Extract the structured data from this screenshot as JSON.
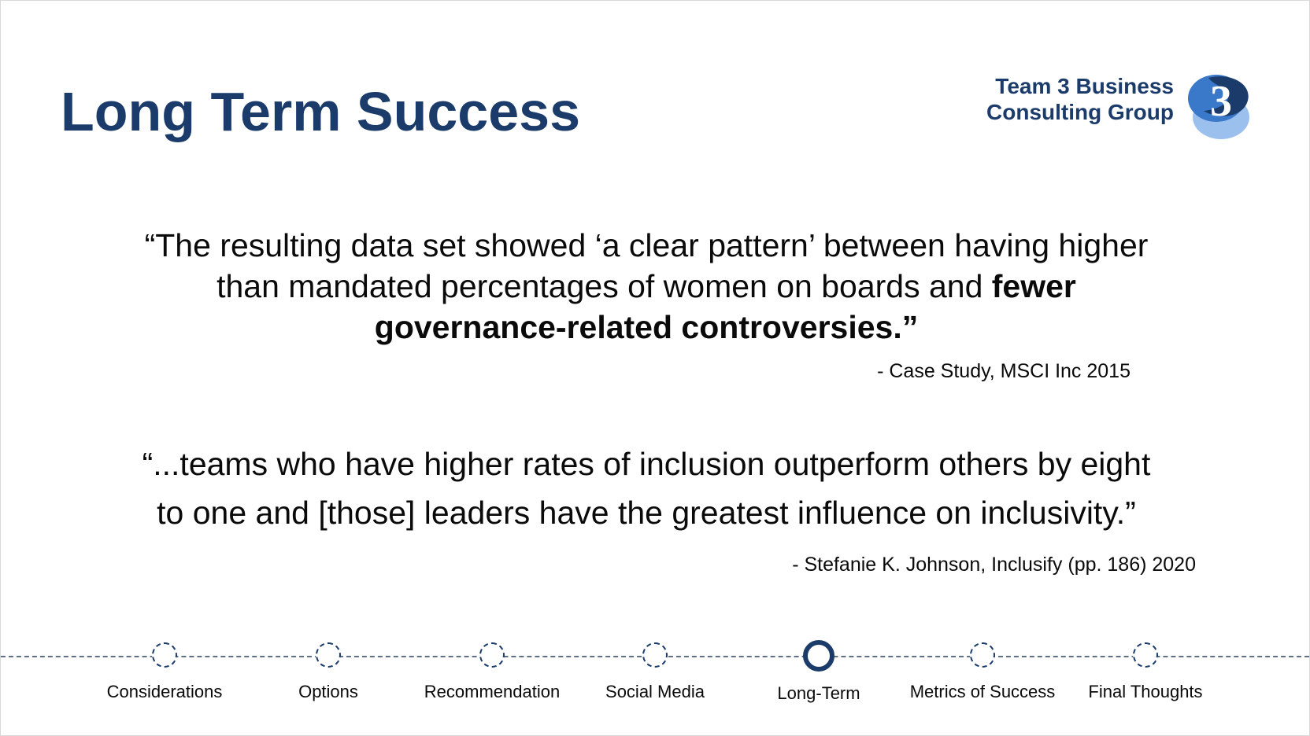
{
  "slide": {
    "title": "Long Term Success",
    "brand": {
      "line1": "Team 3 Business",
      "line2": "Consulting Group",
      "logo_icon": "team-3-logo",
      "logo_numeral": "3"
    },
    "quote1": {
      "line1": "“The resulting data set showed ‘a clear pattern’ between having higher",
      "line2_regular": "than mandated percentages of women on boards and ",
      "line2_bold": "fewer",
      "line3_bold": "governance-related controversies.”",
      "citation": "- Case Study, MSCI Inc 2015"
    },
    "quote2": {
      "line1": "“...teams  who have higher rates of inclusion outperform others by eight",
      "line2": "to one and [those] leaders have the greatest  influence on inclusivity.”",
      "citation": "- Stefanie K. Johnson, Inclusify (pp. 186)  2020"
    }
  },
  "timeline": {
    "active_index": 4,
    "items": [
      {
        "label": "Considerations"
      },
      {
        "label": "Options"
      },
      {
        "label": "Recommendation"
      },
      {
        "label": "Social Media"
      },
      {
        "label": "Long-Term"
      },
      {
        "label": "Metrics of Success"
      },
      {
        "label": "Final Thoughts"
      }
    ]
  },
  "colors": {
    "brand_navy": "#1b3b6b",
    "logo_blue": "#3a78c9",
    "logo_light": "#9cc0ee"
  }
}
